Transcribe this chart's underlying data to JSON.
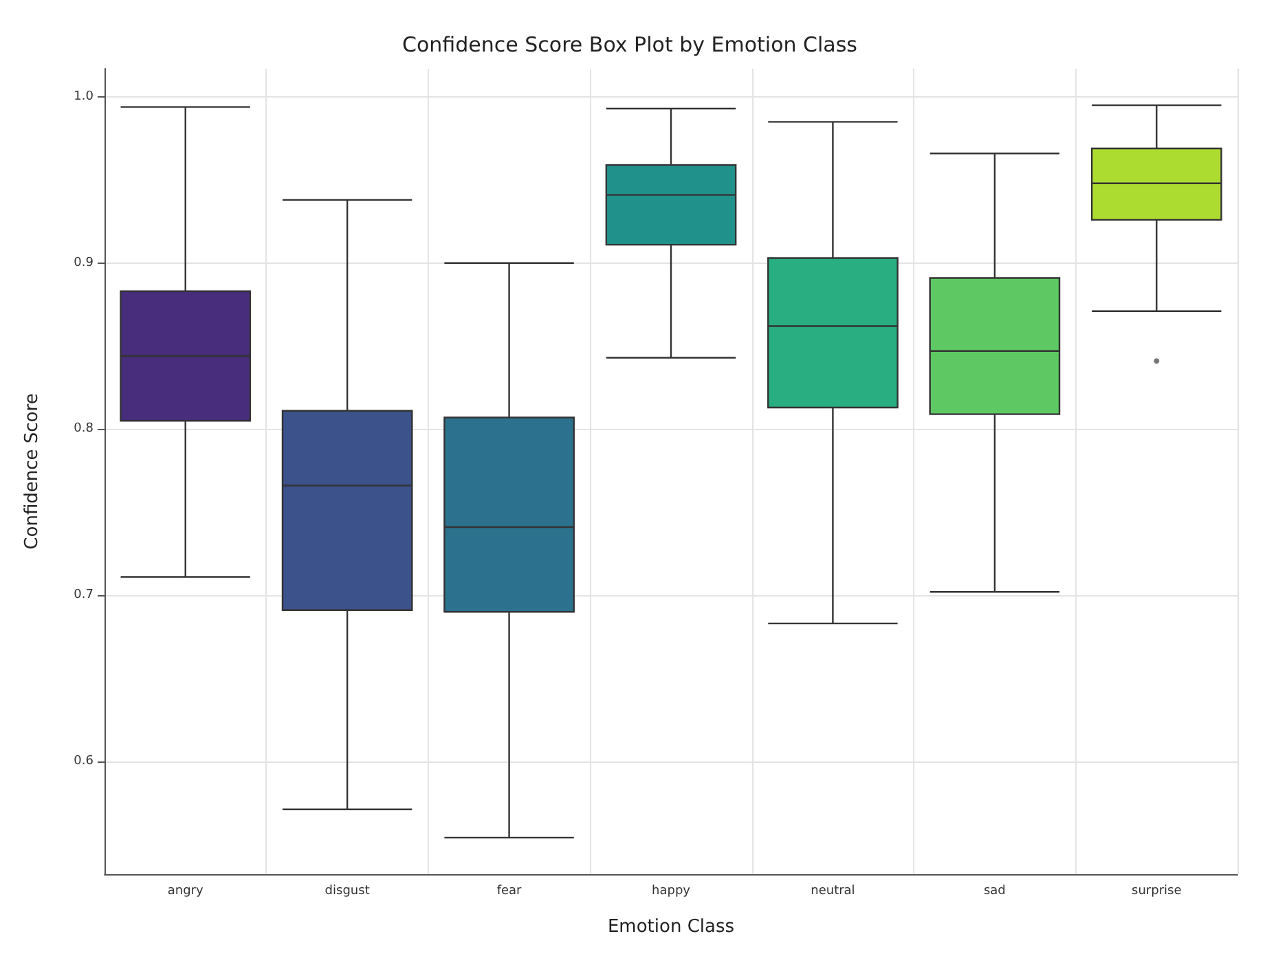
{
  "chart_data": {
    "type": "box",
    "title": "Confidence Score Box Plot by Emotion Class",
    "xlabel": "Emotion Class",
    "ylabel": "Confidence Score",
    "categories": [
      "angry",
      "disgust",
      "fear",
      "happy",
      "neutral",
      "sad",
      "surprise"
    ],
    "colors": [
      "#472d7b",
      "#3b528b",
      "#2c728e",
      "#21918c",
      "#28ae80",
      "#5ec962",
      "#addc30"
    ],
    "boxes": [
      {
        "low": 0.711,
        "q1": 0.805,
        "median": 0.844,
        "q3": 0.883,
        "high": 0.994
      },
      {
        "low": 0.571,
        "q1": 0.691,
        "median": 0.766,
        "q3": 0.811,
        "high": 0.938
      },
      {
        "low": 0.554,
        "q1": 0.69,
        "median": 0.741,
        "q3": 0.807,
        "high": 0.9
      },
      {
        "low": 0.843,
        "q1": 0.911,
        "median": 0.941,
        "q3": 0.959,
        "high": 0.993
      },
      {
        "low": 0.683,
        "q1": 0.813,
        "median": 0.862,
        "q3": 0.903,
        "high": 0.985
      },
      {
        "low": 0.702,
        "q1": 0.809,
        "median": 0.847,
        "q3": 0.891,
        "high": 0.966
      },
      {
        "low": 0.871,
        "q1": 0.926,
        "median": 0.948,
        "q3": 0.969,
        "high": 0.995,
        "outliers": [
          0.841
        ]
      }
    ],
    "ylim": [
      0.532,
      1.017
    ],
    "yticks": [
      0.6,
      0.7,
      0.8,
      0.9,
      {
        "value": 1,
        "label": "1.0"
      }
    ],
    "grid": true
  }
}
